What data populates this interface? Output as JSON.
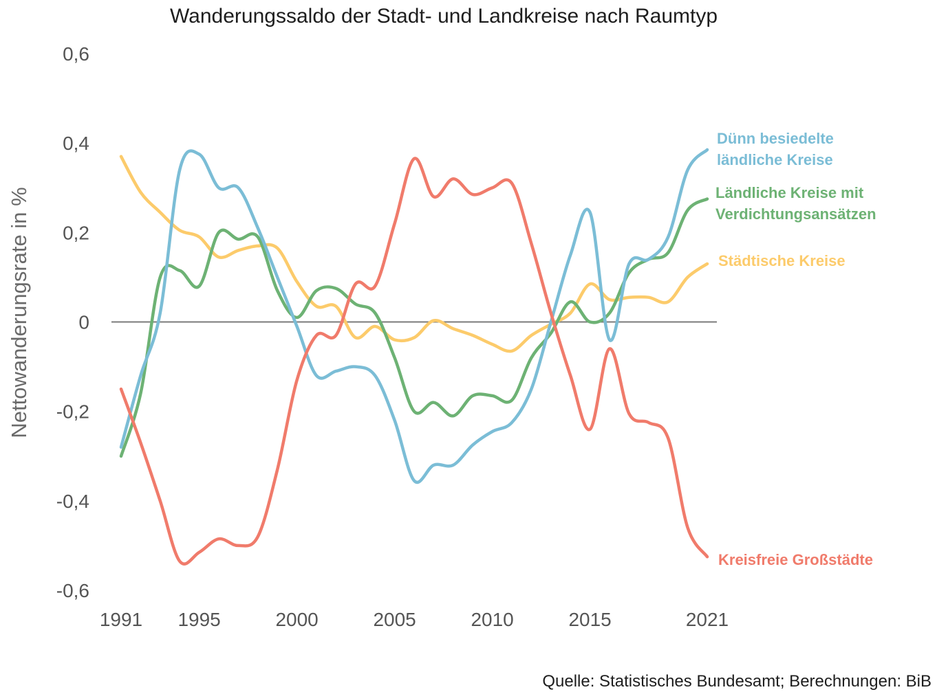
{
  "chart_data": {
    "type": "line",
    "title": "Wanderungssaldo der Stadt- und Landkreise nach Raumtyp",
    "ylabel": "Nettowanderungsrate in %",
    "xlabel": "",
    "source": "Quelle: Statistisches Bundesamt; Berechnungen: BiB",
    "xlim": [
      1991,
      2021
    ],
    "ylim": [
      -0.6,
      0.6
    ],
    "x_ticks": [
      1991,
      1995,
      2000,
      2005,
      2010,
      2015,
      2021
    ],
    "x_tick_labels": [
      "1991",
      "1995",
      "2000",
      "2005",
      "2010",
      "2015",
      "2021"
    ],
    "y_ticks": [
      0.6,
      0.4,
      0.2,
      0,
      -0.2,
      -0.4,
      -0.6
    ],
    "y_tick_labels": [
      "0,6",
      "0,4",
      "0,2",
      "0",
      "-0,2",
      "-0,4",
      "-0,6"
    ],
    "grid": false,
    "zero_line": true,
    "legend_placement": "right (direct labels at line ends)",
    "x": [
      1991,
      1992,
      1993,
      1994,
      1995,
      1996,
      1997,
      1998,
      1999,
      2000,
      2001,
      2002,
      2003,
      2004,
      2005,
      2006,
      2007,
      2008,
      2009,
      2010,
      2011,
      2012,
      2013,
      2014,
      2015,
      2016,
      2017,
      2018,
      2019,
      2020,
      2021
    ],
    "series": [
      {
        "name": "Dünn besiedelte ländliche Kreise",
        "label_lines": [
          "Dünn besiedelte",
          "ländliche Kreise"
        ],
        "color": "#7bbdd6",
        "values": [
          -0.28,
          -0.12,
          0.02,
          0.34,
          0.375,
          0.3,
          0.3,
          0.21,
          0.1,
          -0.01,
          -0.12,
          -0.11,
          -0.1,
          -0.12,
          -0.22,
          -0.355,
          -0.32,
          -0.32,
          -0.275,
          -0.245,
          -0.225,
          -0.15,
          0.0,
          0.15,
          0.245,
          -0.04,
          0.13,
          0.14,
          0.19,
          0.34,
          0.385
        ]
      },
      {
        "name": "Ländliche Kreise mit Verdichtungsansätzen",
        "label_lines": [
          "Ländliche Kreise mit",
          "Verdichtungsansätzen"
        ],
        "color": "#6db274",
        "values": [
          -0.3,
          -0.16,
          0.1,
          0.115,
          0.08,
          0.2,
          0.185,
          0.19,
          0.07,
          0.01,
          0.07,
          0.075,
          0.04,
          0.02,
          -0.08,
          -0.2,
          -0.18,
          -0.21,
          -0.165,
          -0.165,
          -0.175,
          -0.08,
          -0.025,
          0.045,
          0.0,
          0.02,
          0.11,
          0.14,
          0.155,
          0.25,
          0.275
        ]
      },
      {
        "name": "Städtische Kreise",
        "label_lines": [
          "Städtische Kreise"
        ],
        "color": "#fccb6b",
        "values": [
          0.37,
          0.29,
          0.245,
          0.205,
          0.19,
          0.145,
          0.16,
          0.17,
          0.165,
          0.09,
          0.035,
          0.035,
          -0.035,
          -0.01,
          -0.04,
          -0.035,
          0.003,
          -0.015,
          -0.03,
          -0.05,
          -0.065,
          -0.03,
          -0.005,
          0.02,
          0.085,
          0.05,
          0.055,
          0.055,
          0.045,
          0.1,
          0.13
        ]
      },
      {
        "name": "Kreisfreie Großstädte",
        "label_lines": [
          "Kreisfreie Großstädte"
        ],
        "color": "#f07b6b",
        "values": [
          -0.15,
          -0.27,
          -0.4,
          -0.535,
          -0.515,
          -0.485,
          -0.5,
          -0.48,
          -0.33,
          -0.13,
          -0.03,
          -0.03,
          0.085,
          0.08,
          0.22,
          0.365,
          0.28,
          0.32,
          0.285,
          0.3,
          0.31,
          0.175,
          0.02,
          -0.12,
          -0.24,
          -0.06,
          -0.205,
          -0.225,
          -0.26,
          -0.46,
          -0.525
        ]
      }
    ]
  }
}
